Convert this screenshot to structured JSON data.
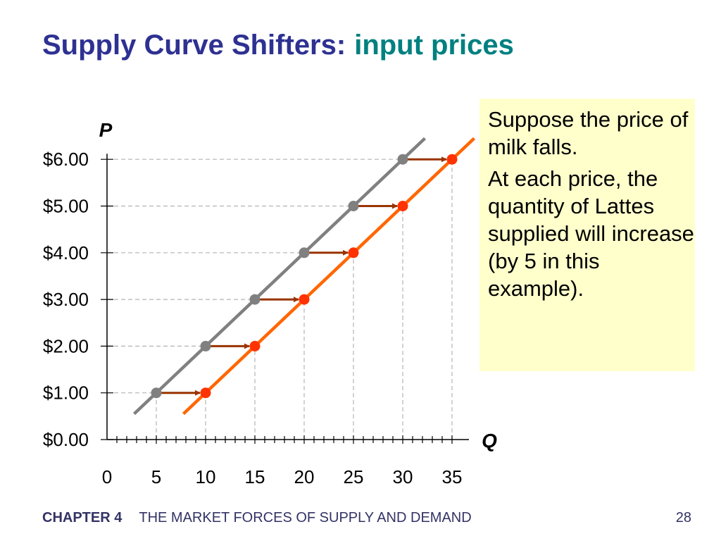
{
  "slide": {
    "title": "Supply Curve Shifters:",
    "subtitle": "input prices",
    "footer_chapter": "CHAPTER 4",
    "footer_text": "THE MARKET FORCES OF SUPPLY AND DEMAND",
    "page_number": "28"
  },
  "callout": {
    "line1": "Suppose the price of milk falls.",
    "line2": "At each price, the quantity of Lattes supplied will increase (by 5 in this example)."
  },
  "colors": {
    "title": "#2e3192",
    "subtitle": "#008080",
    "original_supply": "#808080",
    "new_supply": "#ff6600",
    "new_points": "#ff3300",
    "arrow": "#993300",
    "callout_bg": "#ffffcc",
    "gridline": "#b3b3b3"
  },
  "chart_data": {
    "type": "line",
    "xlabel": "Q",
    "ylabel": "P",
    "xlim": [
      0,
      35
    ],
    "ylim": [
      0,
      6
    ],
    "x_ticks": [
      "0",
      "5",
      "10",
      "15",
      "20",
      "25",
      "30",
      "35"
    ],
    "y_ticks": [
      "$0.00",
      "$1.00",
      "$2.00",
      "$3.00",
      "$4.00",
      "$5.00",
      "$6.00"
    ],
    "grid": "dashed guide lines at data points",
    "series": [
      {
        "color": "#808080",
        "points": [
          [
            5,
            1
          ],
          [
            10,
            2
          ],
          [
            15,
            3
          ],
          [
            20,
            4
          ],
          [
            25,
            5
          ],
          [
            30,
            6
          ]
        ]
      },
      {
        "color": "#ff6600",
        "points": [
          [
            10,
            1
          ],
          [
            15,
            2
          ],
          [
            20,
            3
          ],
          [
            25,
            4
          ],
          [
            30,
            5
          ],
          [
            35,
            6
          ]
        ]
      }
    ],
    "annotations": "arrows from each original-supply point shifting right by 5 to the new-supply point"
  }
}
